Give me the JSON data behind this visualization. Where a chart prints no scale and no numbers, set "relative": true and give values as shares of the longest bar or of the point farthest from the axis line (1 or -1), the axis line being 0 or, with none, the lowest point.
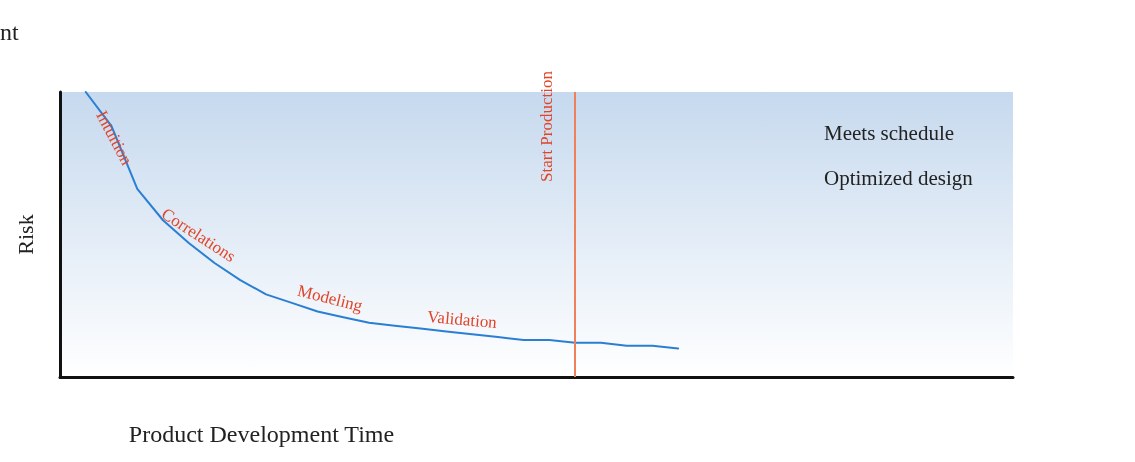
{
  "chart_data": {
    "type": "line",
    "relative": true,
    "xlabel": "Product Development Time",
    "ylabel": "Risk",
    "categories": [
      null,
      null,
      null,
      null,
      null,
      null,
      null,
      null,
      null,
      null,
      null,
      null,
      null,
      null,
      null,
      null,
      null,
      null,
      null,
      null,
      null,
      null,
      null,
      null,
      null,
      null,
      null,
      null,
      null,
      null,
      null,
      null,
      null,
      null,
      null,
      null,
      null,
      null
    ],
    "series": [
      {
        "color": "#2a7fd4",
        "values": [
          null,
          1.0,
          0.88,
          0.66,
          0.55,
          0.47,
          0.4,
          0.34,
          0.29,
          0.26,
          0.23,
          0.21,
          0.19,
          0.18,
          0.17,
          0.16,
          0.15,
          0.14,
          0.13,
          0.13,
          0.12,
          0.12,
          0.11,
          0.11,
          0.1,
          null,
          null,
          null,
          null,
          null,
          null,
          null,
          null,
          null,
          null,
          null,
          null,
          null
        ]
      }
    ],
    "annotations": [
      "nt",
      "Intuition",
      "Correlations",
      "Modeling",
      "Validation",
      "Meets schedule",
      "Optimized design",
      "Start Production"
    ],
    "grid": false,
    "marker": "none",
    "line_style": "solid"
  }
}
